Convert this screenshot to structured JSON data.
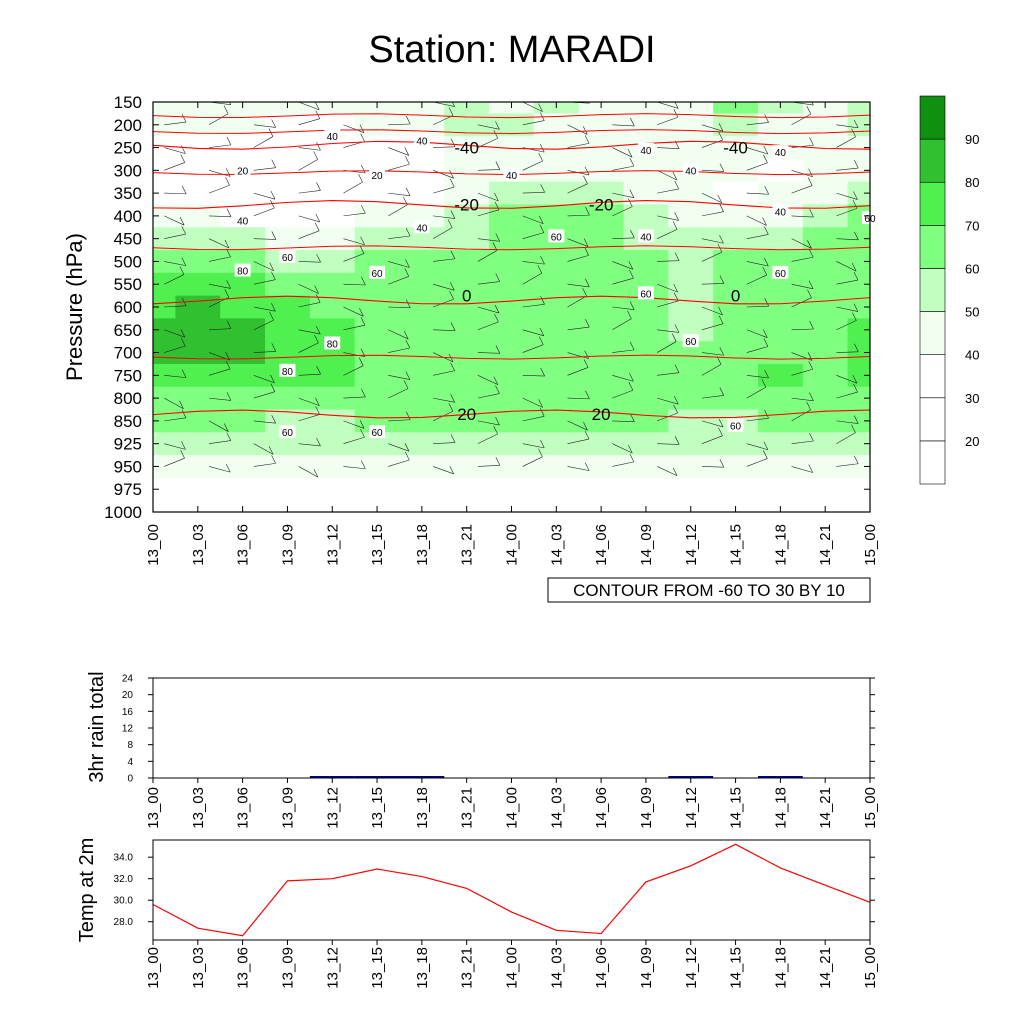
{
  "title": "Station: MARADI",
  "colors": {
    "temp_line": "#ff0000",
    "contour_red": "#ff0000",
    "rain_bar": "#00008b",
    "rh_fill": [
      "#ffffff",
      "#ffffff",
      "#ffffff",
      "#f0fff0",
      "#c0ffc0",
      "#80ff80",
      "#50f050",
      "#30c030",
      "#109010"
    ]
  },
  "chart_data": [
    {
      "type": "heatmap",
      "name": "cross-section",
      "ylabel": "Pressure (hPa)",
      "xlabel": "",
      "x_ticks": [
        "13_00",
        "13_03",
        "13_06",
        "13_09",
        "13_12",
        "13_15",
        "13_18",
        "13_21",
        "14_00",
        "14_03",
        "14_06",
        "14_09",
        "14_12",
        "14_15",
        "14_18",
        "14_21",
        "15_00"
      ],
      "y_ticks": [
        "150",
        "200",
        "250",
        "300",
        "350",
        "400",
        "450",
        "500",
        "550",
        "600",
        "650",
        "700",
        "750",
        "800",
        "850",
        "925",
        "950",
        "975",
        "1000"
      ],
      "colorbar": {
        "levels": [
          10,
          20,
          30,
          40,
          50,
          60,
          70,
          80,
          90,
          100
        ],
        "labels": [
          "20",
          "30",
          "40",
          "50",
          "60",
          "70",
          "80",
          "90"
        ]
      },
      "rh_levels": [
        "150",
        "200",
        "250",
        "300",
        "350",
        "400",
        "450",
        "500",
        "550",
        "600",
        "650",
        "700",
        "750",
        "800",
        "850",
        "925",
        "950"
      ],
      "rh_grid": [
        [
          40,
          45,
          40,
          40,
          40,
          40,
          40,
          50,
          45,
          50,
          45,
          45,
          45,
          60,
          50,
          45,
          55
        ],
        [
          40,
          40,
          40,
          35,
          35,
          40,
          40,
          50,
          50,
          45,
          40,
          45,
          40,
          55,
          45,
          45,
          50
        ],
        [
          35,
          35,
          35,
          30,
          30,
          35,
          35,
          45,
          45,
          45,
          40,
          40,
          45,
          45,
          40,
          40,
          45
        ],
        [
          35,
          30,
          30,
          30,
          25,
          30,
          35,
          40,
          45,
          45,
          45,
          40,
          40,
          40,
          35,
          40,
          45
        ],
        [
          35,
          30,
          30,
          25,
          25,
          30,
          35,
          40,
          55,
          55,
          55,
          45,
          40,
          35,
          40,
          45,
          55
        ],
        [
          45,
          40,
          35,
          30,
          30,
          40,
          45,
          50,
          60,
          60,
          60,
          50,
          45,
          40,
          45,
          55,
          60
        ],
        [
          55,
          50,
          50,
          45,
          45,
          50,
          55,
          55,
          60,
          65,
          65,
          55,
          50,
          50,
          55,
          60,
          65
        ],
        [
          65,
          65,
          60,
          55,
          55,
          60,
          65,
          65,
          65,
          65,
          65,
          60,
          55,
          60,
          65,
          65,
          65
        ],
        [
          75,
          75,
          70,
          65,
          60,
          60,
          60,
          60,
          65,
          65,
          65,
          60,
          55,
          60,
          65,
          65,
          65
        ],
        [
          75,
          80,
          75,
          70,
          65,
          65,
          60,
          60,
          65,
          65,
          65,
          60,
          55,
          60,
          65,
          65,
          65
        ],
        [
          80,
          85,
          80,
          75,
          70,
          65,
          65,
          65,
          65,
          65,
          65,
          60,
          55,
          60,
          65,
          65,
          70
        ],
        [
          80,
          85,
          80,
          75,
          70,
          65,
          65,
          65,
          65,
          65,
          65,
          60,
          60,
          60,
          65,
          65,
          75
        ],
        [
          75,
          75,
          75,
          75,
          70,
          65,
          65,
          65,
          65,
          65,
          65,
          65,
          60,
          65,
          70,
          65,
          70
        ],
        [
          65,
          65,
          65,
          65,
          65,
          65,
          65,
          65,
          65,
          65,
          65,
          65,
          60,
          65,
          65,
          65,
          65
        ],
        [
          60,
          60,
          60,
          55,
          55,
          60,
          60,
          60,
          60,
          60,
          60,
          60,
          55,
          55,
          60,
          60,
          60
        ],
        [
          50,
          50,
          50,
          50,
          50,
          50,
          50,
          55,
          55,
          55,
          55,
          55,
          50,
          50,
          55,
          55,
          55
        ],
        [
          45,
          45,
          45,
          45,
          45,
          45,
          45,
          45,
          45,
          45,
          45,
          45,
          45,
          45,
          45,
          45,
          45
        ]
      ],
      "temperature_contours": [
        {
          "label": "-40",
          "values": [
            -40,
            -40,
            -40,
            -40,
            -40,
            -40,
            -40,
            -40,
            -40,
            -40,
            -40,
            -40,
            -40,
            -40,
            -40,
            -40,
            -40
          ]
        },
        {
          "label": "-20",
          "values": [
            -20,
            -20,
            -20,
            -20,
            -20,
            -20,
            -20,
            -20,
            -20,
            -20,
            -20,
            -20,
            -20,
            -20,
            -20,
            -20,
            -20
          ]
        },
        {
          "label": "0",
          "values": [
            0,
            0,
            0,
            0,
            0,
            0,
            0,
            0,
            0,
            0,
            0,
            0,
            0,
            0,
            0,
            0,
            0
          ]
        },
        {
          "label": "20",
          "values": [
            20,
            20,
            20,
            20,
            20,
            20,
            20,
            20,
            20,
            20,
            20,
            20,
            20,
            20,
            20,
            20,
            20
          ]
        }
      ],
      "contour_labels": [
        {
          "text": "-40",
          "x": "13_21",
          "p": "250",
          "color": "red"
        },
        {
          "text": "-40",
          "x": "14_15",
          "p": "250",
          "color": "red"
        },
        {
          "text": "-20",
          "x": "13_21",
          "p": "375",
          "color": "red"
        },
        {
          "text": "-20",
          "x": "14_06",
          "p": "375",
          "color": "red"
        },
        {
          "text": "0",
          "x": "13_21",
          "p": "575",
          "color": "red"
        },
        {
          "text": "0",
          "x": "14_15",
          "p": "575",
          "color": "red"
        },
        {
          "text": "20",
          "x": "13_21",
          "p": "835",
          "color": "red"
        },
        {
          "text": "20",
          "x": "14_06",
          "p": "835",
          "color": "red"
        },
        {
          "text": "40",
          "x": "13_12",
          "p": "225",
          "color": "black"
        },
        {
          "text": "40",
          "x": "13_18",
          "p": "235",
          "color": "black"
        },
        {
          "text": "40",
          "x": "14_09",
          "p": "255",
          "color": "black"
        },
        {
          "text": "40",
          "x": "14_00",
          "p": "310",
          "color": "black"
        },
        {
          "text": "40",
          "x": "14_12",
          "p": "300",
          "color": "black"
        },
        {
          "text": "40",
          "x": "14_18",
          "p": "260",
          "color": "black"
        },
        {
          "text": "40",
          "x": "14_18",
          "p": "390",
          "color": "black"
        },
        {
          "text": "40",
          "x": "13_06",
          "p": "410",
          "color": "black"
        },
        {
          "text": "40",
          "x": "13_18",
          "p": "425",
          "color": "black"
        },
        {
          "text": "40",
          "x": "14_09",
          "p": "445",
          "color": "black"
        },
        {
          "text": "20",
          "x": "13_06",
          "p": "300",
          "color": "black"
        },
        {
          "text": "20",
          "x": "13_15",
          "p": "310",
          "color": "black"
        },
        {
          "text": "60",
          "x": "13_09",
          "p": "490",
          "color": "black"
        },
        {
          "text": "60",
          "x": "13_15",
          "p": "525",
          "color": "black"
        },
        {
          "text": "60",
          "x": "14_03",
          "p": "445",
          "color": "black"
        },
        {
          "text": "60",
          "x": "14_09",
          "p": "570",
          "color": "black"
        },
        {
          "text": "60",
          "x": "14_18",
          "p": "525",
          "color": "black"
        },
        {
          "text": "60",
          "x": "15_00",
          "p": "405",
          "color": "black"
        },
        {
          "text": "60",
          "x": "14_12",
          "p": "675",
          "color": "black"
        },
        {
          "text": "60",
          "x": "14_15",
          "p": "866",
          "color": "black"
        },
        {
          "text": "60",
          "x": "13_09",
          "p": "887",
          "color": "black"
        },
        {
          "text": "60",
          "x": "13_15",
          "p": "887",
          "color": "black"
        },
        {
          "text": "80",
          "x": "13_06",
          "p": "520",
          "color": "black"
        },
        {
          "text": "80",
          "x": "13_12",
          "p": "680",
          "color": "black"
        },
        {
          "text": "80",
          "x": "13_09",
          "p": "740",
          "color": "black"
        }
      ],
      "annotation": "CONTOUR FROM -60 TO 30 BY 10"
    },
    {
      "type": "bar",
      "name": "rain",
      "ylabel": "3hr rain total",
      "ylim": [
        0,
        24
      ],
      "y_ticks": [
        "0",
        "4",
        "8",
        "12",
        "16",
        "20",
        "24"
      ],
      "categories": [
        "13_00",
        "13_03",
        "13_06",
        "13_09",
        "13_12",
        "13_15",
        "13_18",
        "13_21",
        "14_00",
        "14_03",
        "14_06",
        "14_09",
        "14_12",
        "14_15",
        "14_18",
        "14_21",
        "15_00"
      ],
      "values": [
        0,
        0,
        0,
        0,
        0.4,
        0.2,
        0.1,
        0,
        0,
        0,
        0,
        0,
        0.3,
        0,
        0.3,
        0,
        0
      ]
    },
    {
      "type": "line",
      "name": "temperature",
      "ylabel": "Temp at 2m",
      "ylim": [
        26.3,
        35.6
      ],
      "y_ticks": [
        "28.0",
        "30.0",
        "32.0",
        "34.0"
      ],
      "categories": [
        "13_00",
        "13_03",
        "13_06",
        "13_09",
        "13_12",
        "13_15",
        "13_18",
        "13_21",
        "14_00",
        "14_03",
        "14_06",
        "14_09",
        "14_12",
        "14_15",
        "14_18",
        "14_21",
        "15_00"
      ],
      "values": [
        29.6,
        27.4,
        26.7,
        31.8,
        32.0,
        32.9,
        32.2,
        31.1,
        28.9,
        27.2,
        26.9,
        31.7,
        33.2,
        35.2,
        33.0,
        31.4,
        29.8
      ]
    }
  ]
}
